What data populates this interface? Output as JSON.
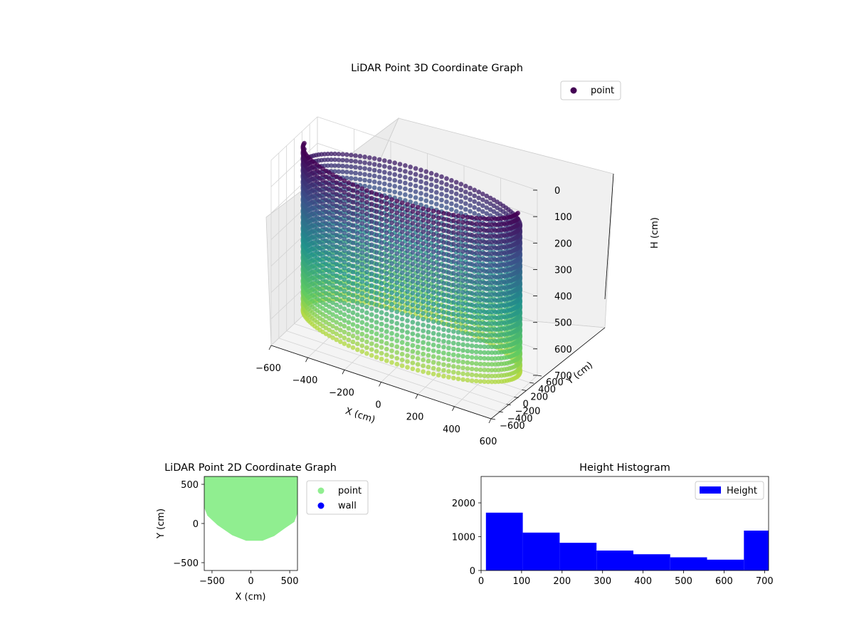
{
  "chart_data": [
    {
      "type": "scatter",
      "projection": "3d",
      "title": "LiDAR Point 3D Coordinate Graph",
      "xlabel": "X (cm)",
      "ylabel": "Y (cm)",
      "zlabel": "H (cm)",
      "xticks": [
        "−600",
        "−400",
        "−200",
        "0",
        "200",
        "400",
        "600"
      ],
      "yticks": [
        "−600",
        "−400",
        "−200",
        "0",
        "200",
        "400",
        "600"
      ],
      "zticks": [
        "0",
        "100",
        "200",
        "300",
        "400",
        "500",
        "600",
        "700"
      ],
      "xlim": [
        -600,
        600
      ],
      "ylim": [
        -600,
        600
      ],
      "zlim": [
        0,
        700
      ],
      "z_inverted": true,
      "colormap": "viridis",
      "legend": {
        "entries": [
          {
            "label": "point",
            "color": "#440154"
          }
        ],
        "placement": "top-right"
      },
      "description_shape": "cylindrical wall of points, radius about 600 cm, height 0 to 700 cm"
    },
    {
      "type": "scatter",
      "title": "LiDAR Point 2D Coordinate Graph",
      "xlabel": "X (cm)",
      "ylabel": "Y (cm)",
      "xticks": [
        "−500",
        "0",
        "500"
      ],
      "yticks": [
        "500",
        "0",
        "−500"
      ],
      "xlim": [
        -600,
        600
      ],
      "ylim": [
        -600,
        600
      ],
      "series": [
        {
          "name": "point",
          "color": "#90ee90",
          "outline": [
            [
              -600,
              600
            ],
            [
              600,
              600
            ],
            [
              600,
              130
            ],
            [
              560,
              20
            ],
            [
              440,
              -60
            ],
            [
              300,
              -160
            ],
            [
              150,
              -220
            ],
            [
              -60,
              -220
            ],
            [
              -240,
              -150
            ],
            [
              -430,
              -20
            ],
            [
              -560,
              100
            ],
            [
              -600,
              200
            ]
          ]
        },
        {
          "name": "wall",
          "color": "#0000ff",
          "outline": []
        }
      ],
      "legend": {
        "entries": [
          {
            "label": "point",
            "color": "#90ee90"
          },
          {
            "label": "wall",
            "color": "#0000ff"
          }
        ],
        "placement": "outside-right"
      }
    },
    {
      "type": "bar",
      "subtype": "histogram",
      "title": "Height Histogram",
      "xticks": [
        "0",
        "100",
        "200",
        "300",
        "400",
        "500",
        "600",
        "700"
      ],
      "yticks": [
        "0",
        "1000",
        "2000"
      ],
      "xlim": [
        0,
        710
      ],
      "ylim": [
        0,
        2780
      ],
      "bin_edges": [
        12,
        103,
        194,
        285,
        376,
        467,
        558,
        649,
        740
      ],
      "values": [
        1710,
        1120,
        820,
        590,
        480,
        390,
        320,
        1180
      ],
      "color": "#0000ff",
      "legend": {
        "entries": [
          {
            "label": "Height",
            "color": "#0000ff"
          }
        ],
        "placement": "top-right"
      }
    }
  ]
}
